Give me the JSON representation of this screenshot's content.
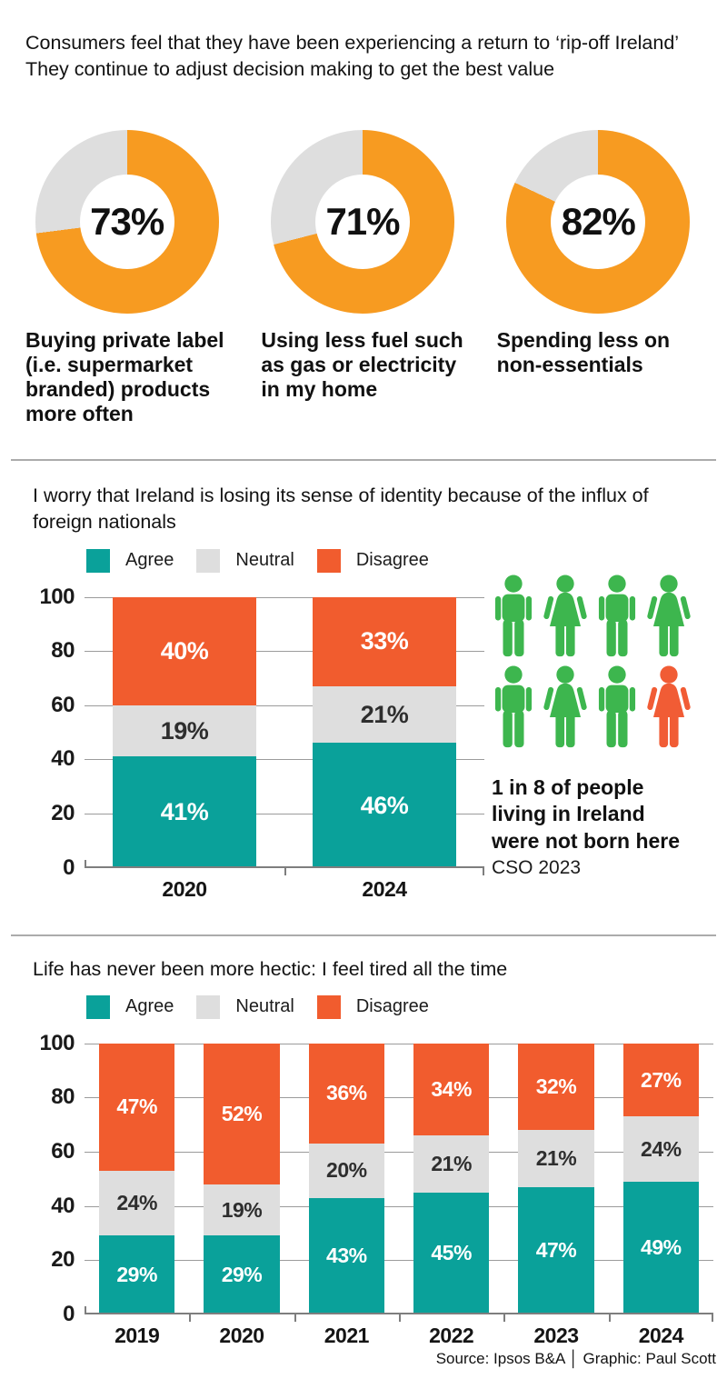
{
  "headline": [
    "Consumers feel that they have been experiencing a return to ‘rip-off Ireland’",
    "They continue to adjust decision making to get the best value"
  ],
  "footer": "Source: Ipsos B&A │ Graphic: Paul Scott",
  "people_graphic": {
    "figures": [
      {
        "shape": "male",
        "color": "green"
      },
      {
        "shape": "female",
        "color": "green"
      },
      {
        "shape": "male",
        "color": "green"
      },
      {
        "shape": "female",
        "color": "green"
      },
      {
        "shape": "male",
        "color": "green"
      },
      {
        "shape": "female",
        "color": "green"
      },
      {
        "shape": "male",
        "color": "green"
      },
      {
        "shape": "female",
        "color": "orange"
      }
    ],
    "colors": {
      "green": "#3DB64E",
      "orange": "#F15C35"
    },
    "caption_lines": [
      "1 in 8 of people",
      "living in Ireland",
      "were not born here"
    ],
    "source": "CSO 2023"
  },
  "chart_data": [
    {
      "type": "pie",
      "variant": "donut-set",
      "colors": {
        "filled": "#F79B21",
        "remainder": "#DEDEDE"
      },
      "donuts": [
        {
          "value": 73,
          "label_lines": [
            "Buying private label",
            "(i.e. supermarket",
            "branded) products",
            "more often"
          ]
        },
        {
          "value": 71,
          "label_lines": [
            "Using less fuel such",
            "as gas or electricity",
            "in my home"
          ]
        },
        {
          "value": 82,
          "label_lines": [
            "Spending less on",
            "non-essentials"
          ]
        }
      ]
    },
    {
      "type": "bar",
      "stacked": true,
      "title_lines": [
        "I worry that Ireland is losing its sense of identity because of the influx of",
        "foreign nationals"
      ],
      "categories": [
        "2020",
        "2024"
      ],
      "series": [
        {
          "name": "Agree",
          "color": "#0AA19A",
          "label_color": "#FFFFFF",
          "values": [
            41,
            46
          ]
        },
        {
          "name": "Neutral",
          "color": "#DEDEDE",
          "label_color": "#2E2E2E",
          "values": [
            19,
            21
          ]
        },
        {
          "name": "Disagree",
          "color": "#F15C2E",
          "label_color": "#FFFFFF",
          "values": [
            40,
            33
          ]
        }
      ],
      "ylim": [
        0,
        100
      ],
      "yticks": [
        0,
        20,
        40,
        60,
        80,
        100
      ],
      "grid": true,
      "legend_position": "top"
    },
    {
      "type": "bar",
      "stacked": true,
      "title_lines": [
        "Life has never been more hectic: I feel tired all the time"
      ],
      "categories": [
        "2019",
        "2020",
        "2021",
        "2022",
        "2023",
        "2024"
      ],
      "series": [
        {
          "name": "Agree",
          "color": "#0AA19A",
          "label_color": "#FFFFFF",
          "values": [
            29,
            29,
            43,
            45,
            47,
            49
          ]
        },
        {
          "name": "Neutral",
          "color": "#DEDEDE",
          "label_color": "#2E2E2E",
          "values": [
            24,
            19,
            20,
            21,
            21,
            24
          ]
        },
        {
          "name": "Disagree",
          "color": "#F15C2E",
          "label_color": "#FFFFFF",
          "values": [
            47,
            52,
            36,
            34,
            32,
            27
          ]
        }
      ],
      "ylim": [
        0,
        100
      ],
      "yticks": [
        0,
        20,
        40,
        60,
        80,
        100
      ],
      "grid": true,
      "legend_position": "top"
    }
  ]
}
